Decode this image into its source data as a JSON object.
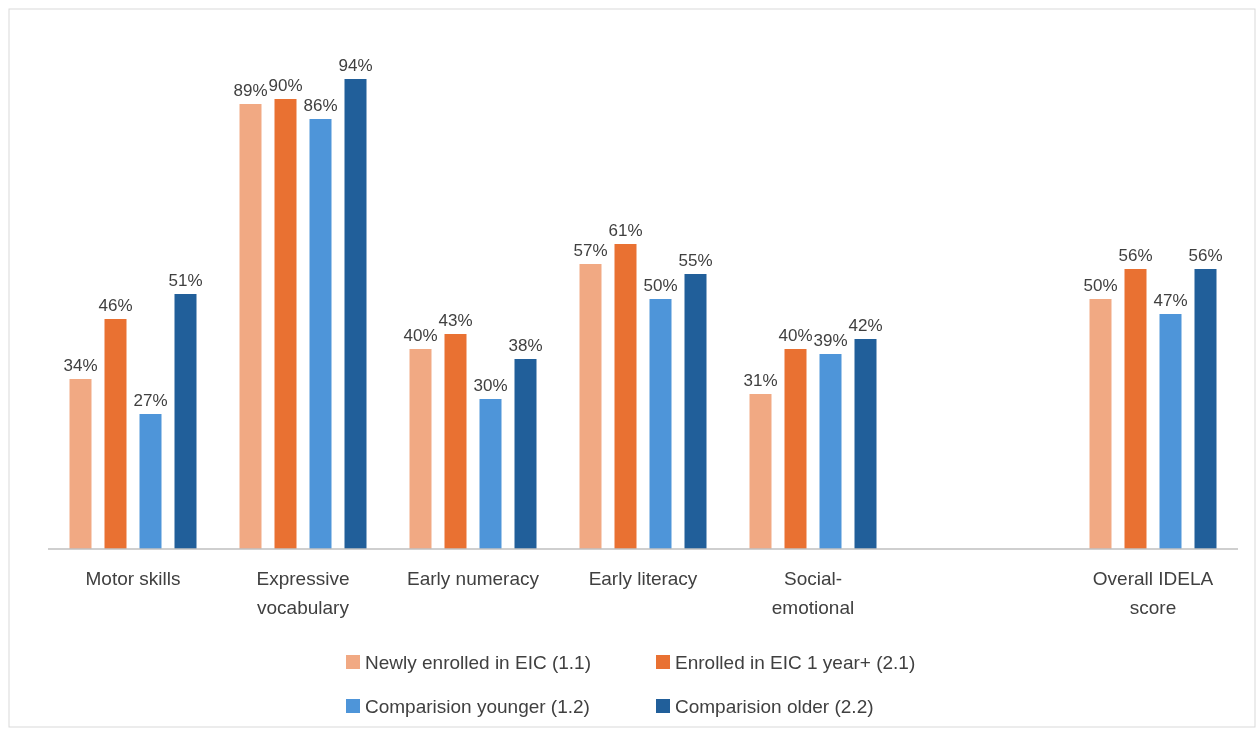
{
  "chart_data": {
    "type": "bar",
    "categories": [
      "Motor skills",
      "Expressive vocabulary",
      "Early numeracy",
      "Early literacy",
      "Social-emotional",
      null,
      "Overall IDELA score"
    ],
    "series": [
      {
        "name": "Newly enrolled in EIC (1.1)",
        "color": "#f1a983",
        "values": [
          34,
          89,
          40,
          57,
          31,
          null,
          50
        ],
        "value_labels": [
          "34%",
          "89%",
          "40%",
          "57%",
          "31%",
          null,
          "50%"
        ]
      },
      {
        "name": "Enrolled in EIC 1 year+ (2.1)",
        "color": "#e97132",
        "values": [
          46,
          90,
          43,
          61,
          40,
          null,
          56
        ],
        "value_labels": [
          "46%",
          "90%",
          "43%",
          "61%",
          "40%",
          null,
          "56%"
        ]
      },
      {
        "name": "Comparision younger (1.2)",
        "color": "#4e95d9",
        "values": [
          27,
          86,
          30,
          50,
          39,
          null,
          47
        ],
        "value_labels": [
          "27%",
          "86%",
          "30%",
          "50%",
          "39%",
          null,
          "47%"
        ]
      },
      {
        "name": "Comparision older (2.2)",
        "color": "#215f9a",
        "values": [
          51,
          94,
          38,
          55,
          42,
          null,
          56
        ],
        "value_labels": [
          "51%",
          "94%",
          "38%",
          "55%",
          "42%",
          null,
          "56%"
        ]
      }
    ],
    "legend": "bottom"
  }
}
